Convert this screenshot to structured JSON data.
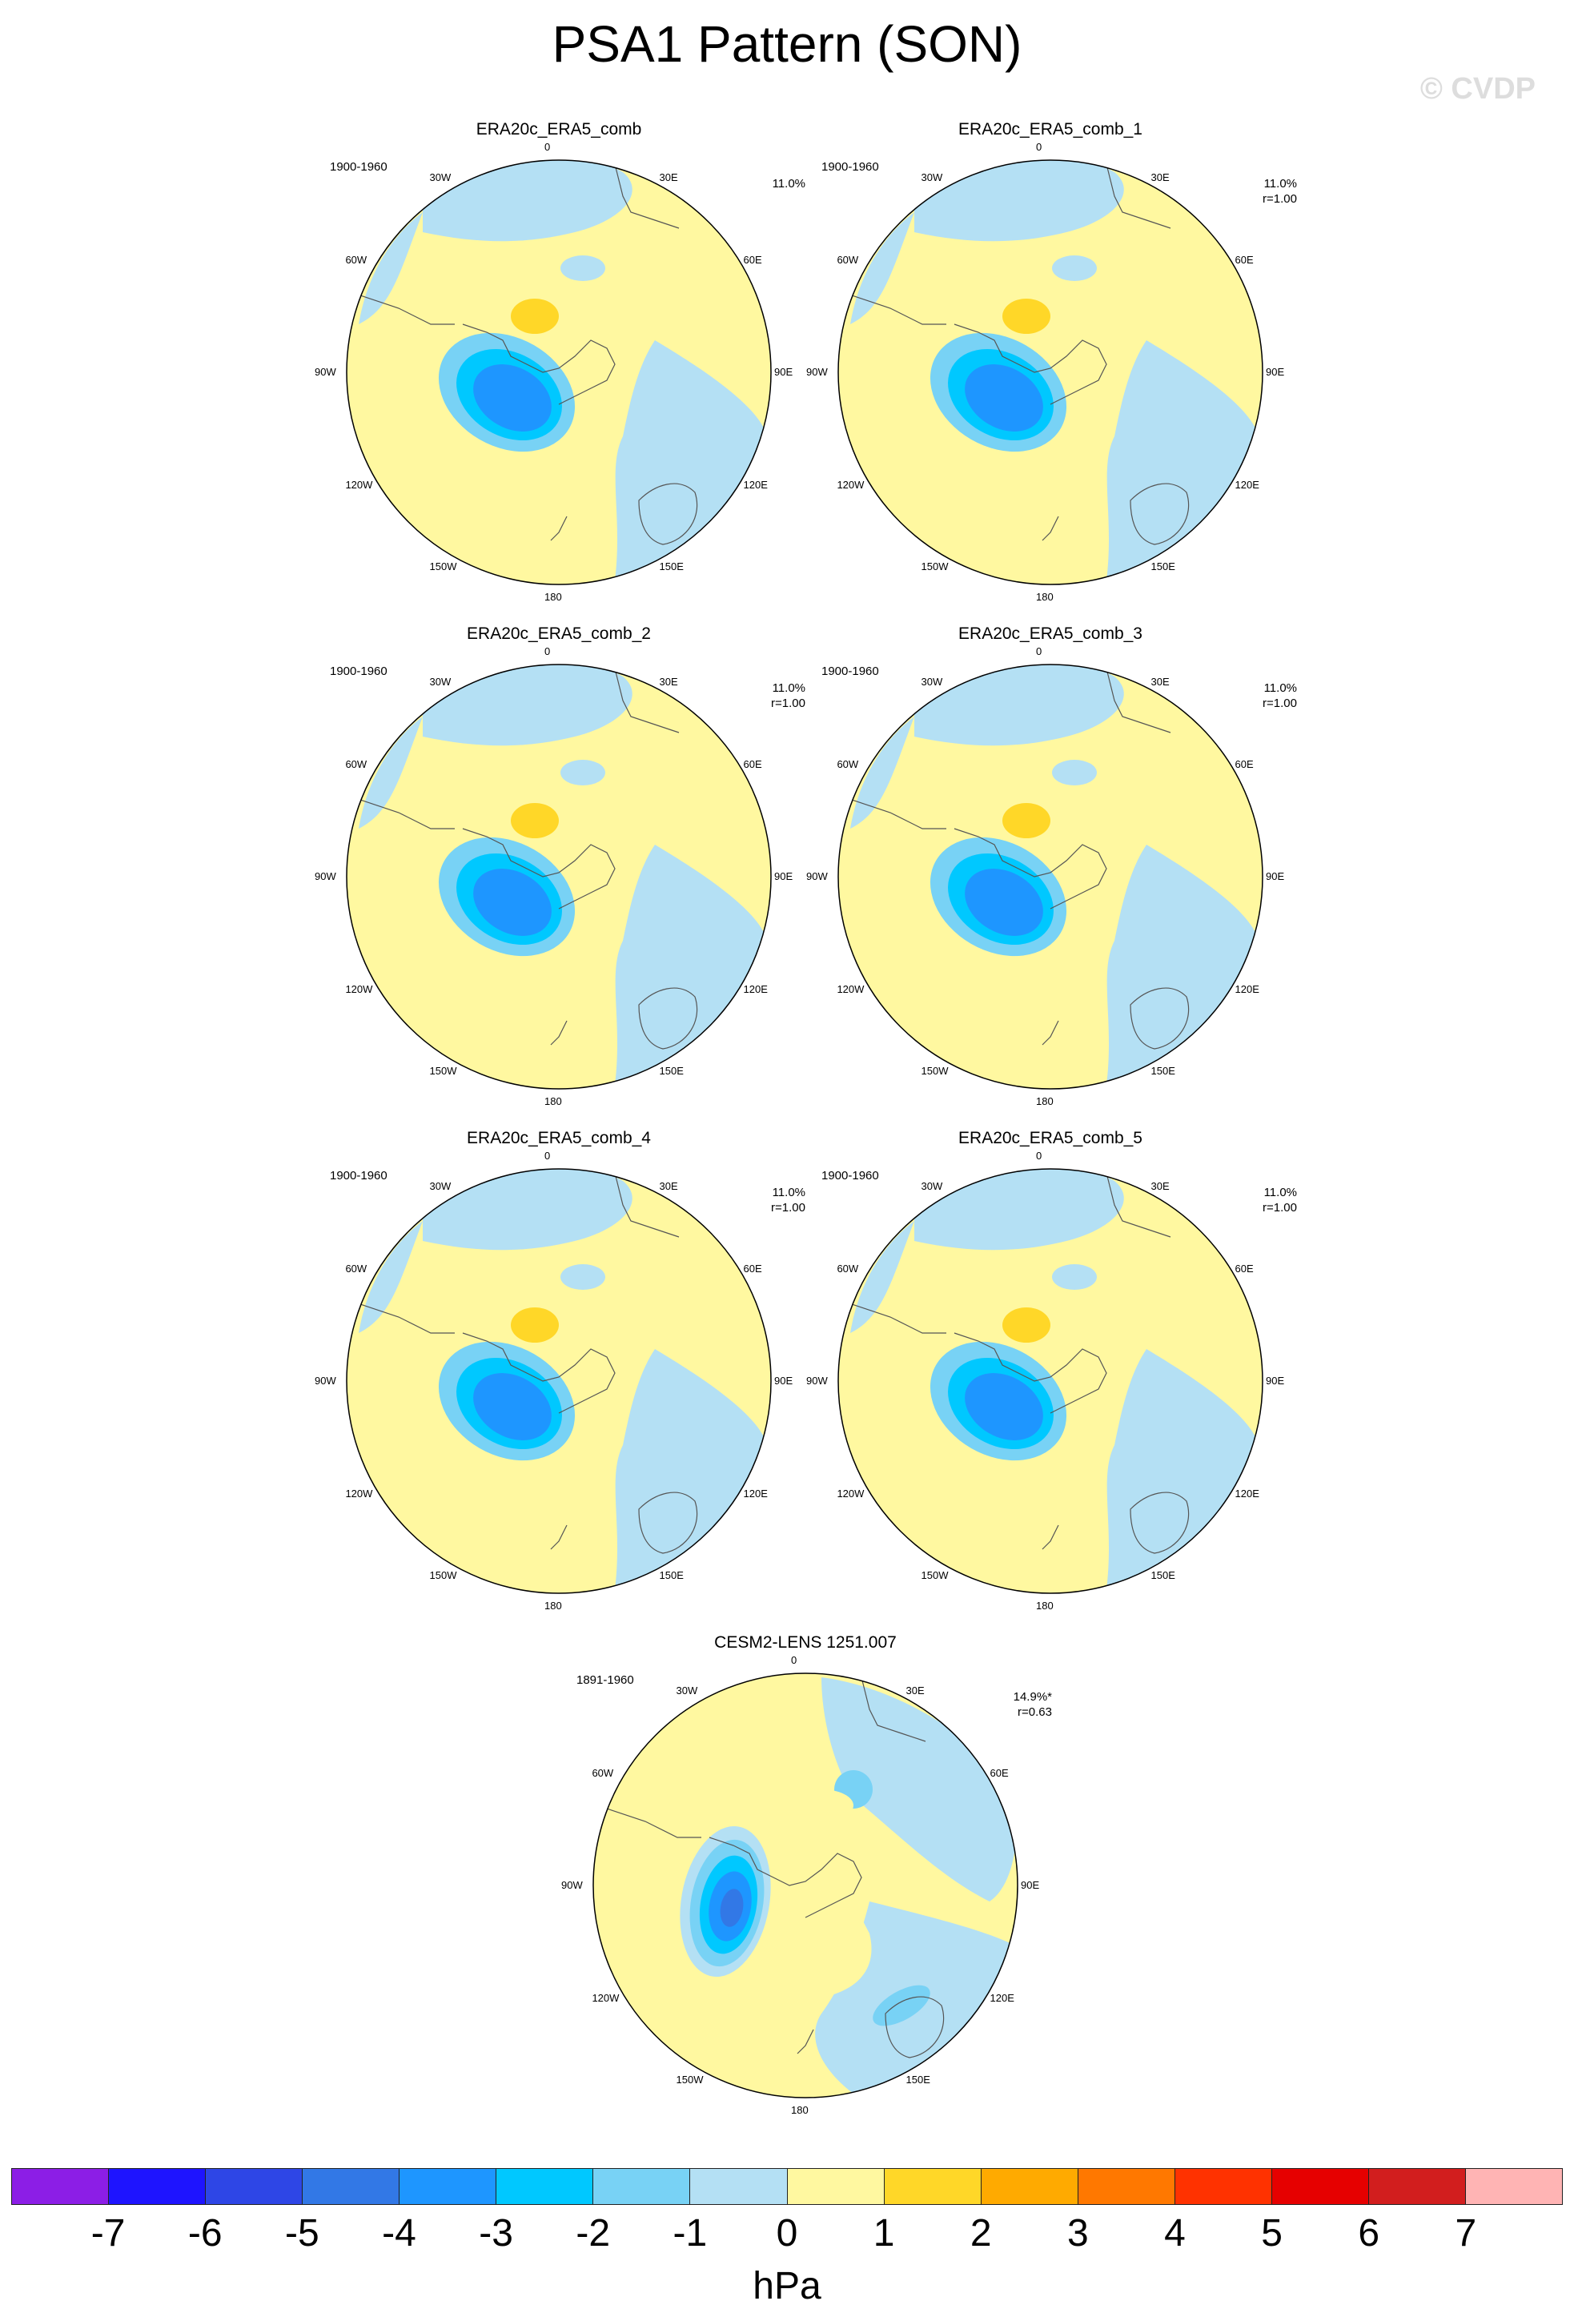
{
  "title": "PSA1 Pattern (SON)",
  "watermark": "© CVDP",
  "lon_labels": [
    "0",
    "30E",
    "60E",
    "90E",
    "120E",
    "150E",
    "180",
    "150W",
    "120W",
    "90W",
    "60W",
    "30W"
  ],
  "panels": [
    {
      "title": "ERA20c_ERA5_comb",
      "period": "1900-1960",
      "pct": "11.0%",
      "r": "",
      "variant": "obs"
    },
    {
      "title": "ERA20c_ERA5_comb_1",
      "period": "1900-1960",
      "pct": "11.0%",
      "r": "r=1.00",
      "variant": "obs"
    },
    {
      "title": "ERA20c_ERA5_comb_2",
      "period": "1900-1960",
      "pct": "11.0%",
      "r": "r=1.00",
      "variant": "obs"
    },
    {
      "title": "ERA20c_ERA5_comb_3",
      "period": "1900-1960",
      "pct": "11.0%",
      "r": "r=1.00",
      "variant": "obs"
    },
    {
      "title": "ERA20c_ERA5_comb_4",
      "period": "1900-1960",
      "pct": "11.0%",
      "r": "r=1.00",
      "variant": "obs"
    },
    {
      "title": "ERA20c_ERA5_comb_5",
      "period": "1900-1960",
      "pct": "11.0%",
      "r": "r=1.00",
      "variant": "obs"
    },
    {
      "title": "CESM2-LENS 1251.007",
      "period": "1891-1960",
      "pct": "14.9%*",
      "r": "r=0.63",
      "variant": "model"
    }
  ],
  "colorbar": {
    "unit": "hPa",
    "ticks": [
      "-7",
      "-6",
      "-5",
      "-4",
      "-3",
      "-2",
      "-1",
      "0",
      "1",
      "2",
      "3",
      "4",
      "5",
      "6",
      "7"
    ],
    "colors": [
      "#8c1ee6",
      "#1e14ff",
      "#2e46e6",
      "#3278e6",
      "#1e96ff",
      "#00c8ff",
      "#78d2f5",
      "#b4e0f4",
      "#fff8a0",
      "#ffd728",
      "#ffaa00",
      "#ff7800",
      "#ff3200",
      "#e60000",
      "#d21e1e",
      "#ffb4b4"
    ]
  }
}
